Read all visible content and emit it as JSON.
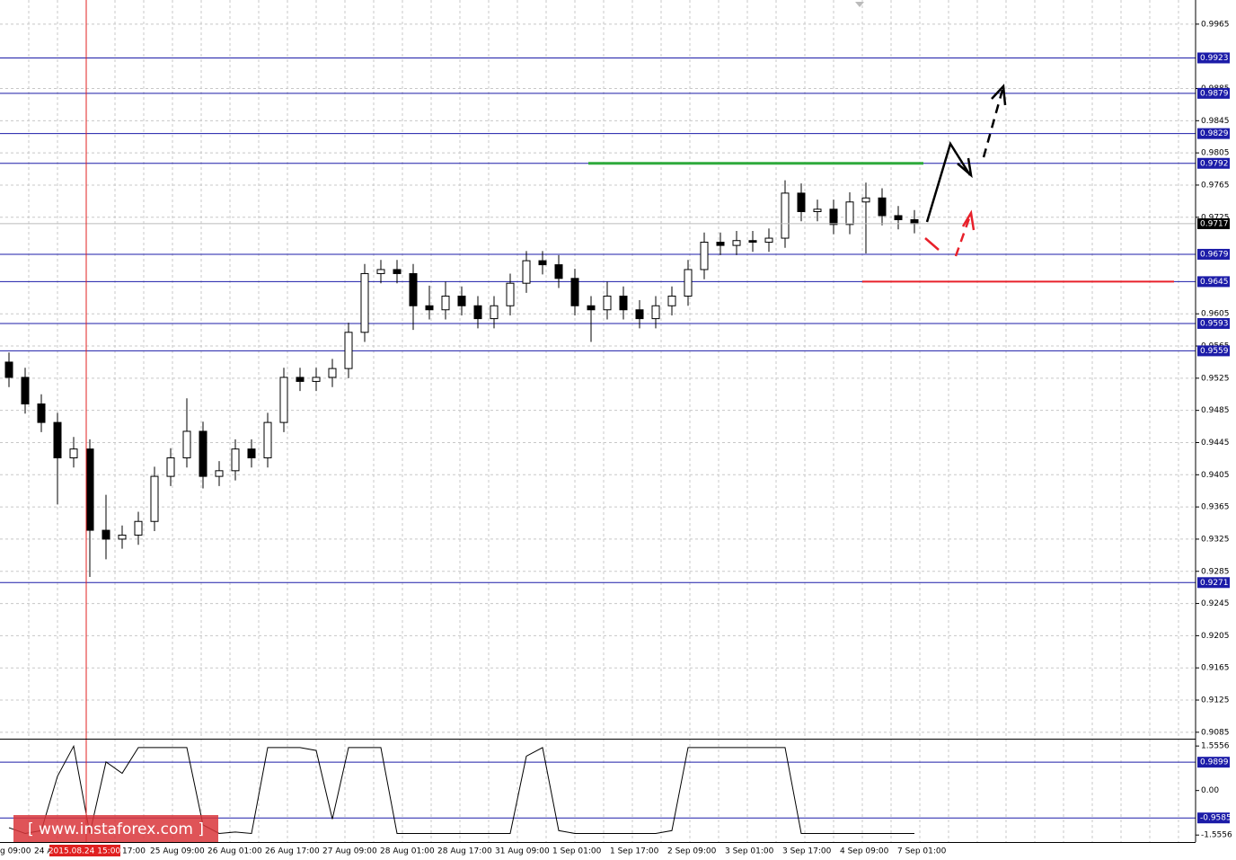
{
  "chart_data": {
    "type": "candlestick",
    "open": [
      0.9545,
      0.9526,
      0.9493,
      0.947,
      0.9426,
      0.9437,
      0.9336,
      0.9325,
      0.933,
      0.9347,
      0.9403,
      0.9426,
      0.9459,
      0.9403,
      0.941,
      0.9437,
      0.9426,
      0.947,
      0.9526,
      0.9521,
      0.9526,
      0.9537,
      0.9582,
      0.9655,
      0.966,
      0.9655,
      0.9615,
      0.961,
      0.9627,
      0.9615,
      0.9599,
      0.9615,
      0.9643,
      0.9671,
      0.9666,
      0.9649,
      0.9615,
      0.961,
      0.9627,
      0.961,
      0.9599,
      0.9615,
      0.9627,
      0.966,
      0.9694,
      0.969,
      0.9696,
      0.9694,
      0.9699,
      0.9755,
      0.9732,
      0.9735,
      0.9716,
      0.9744,
      0.9749,
      0.9727,
      0.9722
    ],
    "high": [
      0.9557,
      0.9538,
      0.9505,
      0.9482,
      0.9452,
      0.9449,
      0.938,
      0.9342,
      0.9359,
      0.9415,
      0.9438,
      0.95,
      0.9471,
      0.9422,
      0.9449,
      0.9449,
      0.9482,
      0.9538,
      0.9538,
      0.9538,
      0.9549,
      0.9594,
      0.9667,
      0.9672,
      0.9672,
      0.9667,
      0.964,
      0.9645,
      0.9639,
      0.9627,
      0.9627,
      0.9655,
      0.9683,
      0.9683,
      0.9678,
      0.9661,
      0.9627,
      0.9645,
      0.9639,
      0.9622,
      0.9627,
      0.9639,
      0.9672,
      0.9706,
      0.9706,
      0.9708,
      0.9708,
      0.9711,
      0.9771,
      0.9767,
      0.9747,
      0.9747,
      0.9756,
      0.9768,
      0.9761,
      0.9739,
      0.9734
    ],
    "low": [
      0.9514,
      0.9481,
      0.9458,
      0.9368,
      0.9414,
      0.9278,
      0.93,
      0.9313,
      0.9318,
      0.9335,
      0.9391,
      0.9414,
      0.9388,
      0.9391,
      0.9398,
      0.9414,
      0.9414,
      0.9458,
      0.9509,
      0.9509,
      0.9514,
      0.9525,
      0.957,
      0.9643,
      0.9643,
      0.9585,
      0.9598,
      0.9598,
      0.9603,
      0.9587,
      0.9587,
      0.9603,
      0.9631,
      0.9654,
      0.9637,
      0.9603,
      0.957,
      0.9598,
      0.9598,
      0.9587,
      0.9587,
      0.9603,
      0.9615,
      0.9648,
      0.9678,
      0.9678,
      0.9682,
      0.9682,
      0.9687,
      0.972,
      0.972,
      0.9704,
      0.9704,
      0.968,
      0.9715,
      0.971,
      0.9705
    ],
    "close": [
      0.9526,
      0.9493,
      0.947,
      0.9426,
      0.9437,
      0.9336,
      0.9325,
      0.933,
      0.9347,
      0.9403,
      0.9426,
      0.9459,
      0.9403,
      0.941,
      0.9437,
      0.9426,
      0.947,
      0.9526,
      0.9521,
      0.9526,
      0.9537,
      0.9582,
      0.9655,
      0.966,
      0.9655,
      0.9615,
      0.961,
      0.9627,
      0.9615,
      0.9599,
      0.9615,
      0.9643,
      0.9671,
      0.9666,
      0.9649,
      0.9615,
      0.961,
      0.9627,
      0.961,
      0.9599,
      0.9615,
      0.9627,
      0.966,
      0.9694,
      0.969,
      0.9696,
      0.9694,
      0.9699,
      0.9755,
      0.9732,
      0.9735,
      0.9716,
      0.9744,
      0.9749,
      0.9727,
      0.9722,
      0.9717
    ],
    "ylim": [
      0.9077,
      0.9995
    ],
    "yticks": [
      0.9965,
      0.9885,
      0.9845,
      0.9805,
      0.9765,
      0.9725,
      0.9605,
      0.9565,
      0.9525,
      0.9485,
      0.9445,
      0.9405,
      0.9365,
      0.9325,
      0.9285,
      0.9245,
      0.9205,
      0.9165,
      0.9125,
      0.9085
    ],
    "grid": true,
    "levels": [
      0.9923,
      0.9879,
      0.9829,
      0.9792,
      0.9679,
      0.9645,
      0.9593,
      0.9559,
      0.9271
    ],
    "level_color": "#1c1ca8",
    "current_price": 0.9717,
    "resistance": 0.9792,
    "resistance_color": "#2eaa3c",
    "support": 0.9645,
    "support_color": "#e8202a",
    "x_labels": [
      "g 09:00",
      "24 A",
      "17:00",
      "25 Aug 09:00",
      "26 Aug 01:00",
      "26 Aug 17:00",
      "27 Aug 09:00",
      "28 Aug 01:00",
      "28 Aug 17:00",
      "31 Aug 09:00",
      "1 Sep 01:00",
      "1 Sep 17:00",
      "2 Sep 09:00",
      "3 Sep 01:00",
      "3 Sep 17:00",
      "4 Sep 09:00",
      "7 Sep 01:00"
    ],
    "cursor_label": "2015.08.24 15:00",
    "indicator": {
      "type": "line",
      "values": [
        -1.3,
        -1.5,
        -1.4,
        0.5,
        1.55,
        -1.5,
        1.0,
        0.6,
        1.5,
        1.5,
        1.5,
        1.5,
        -1.2,
        -1.5,
        -1.45,
        -1.5,
        1.5,
        1.5,
        1.5,
        1.4,
        -1.0,
        1.5,
        1.5,
        1.5,
        -1.5,
        -1.5,
        -1.5,
        -1.5,
        -1.5,
        -1.5,
        -1.5,
        -1.5,
        1.2,
        1.5,
        -1.4,
        -1.5,
        -1.5,
        -1.5,
        -1.5,
        -1.5,
        -1.5,
        -1.4,
        1.5,
        1.5,
        1.5,
        1.5,
        1.5,
        1.5,
        1.5,
        -1.5,
        -1.5,
        -1.5,
        -1.5,
        -1.5,
        -1.5,
        -1.5,
        -1.5
      ],
      "ylim": [
        -1.8,
        1.78
      ],
      "yticks": [
        1.5556,
        {
          "value": 0,
          "label": "0.00"
        },
        -1.5556
      ],
      "levels": [
        0.9899,
        -0.9585
      ]
    },
    "watermark": "[  www.instaforex.com  ]"
  }
}
